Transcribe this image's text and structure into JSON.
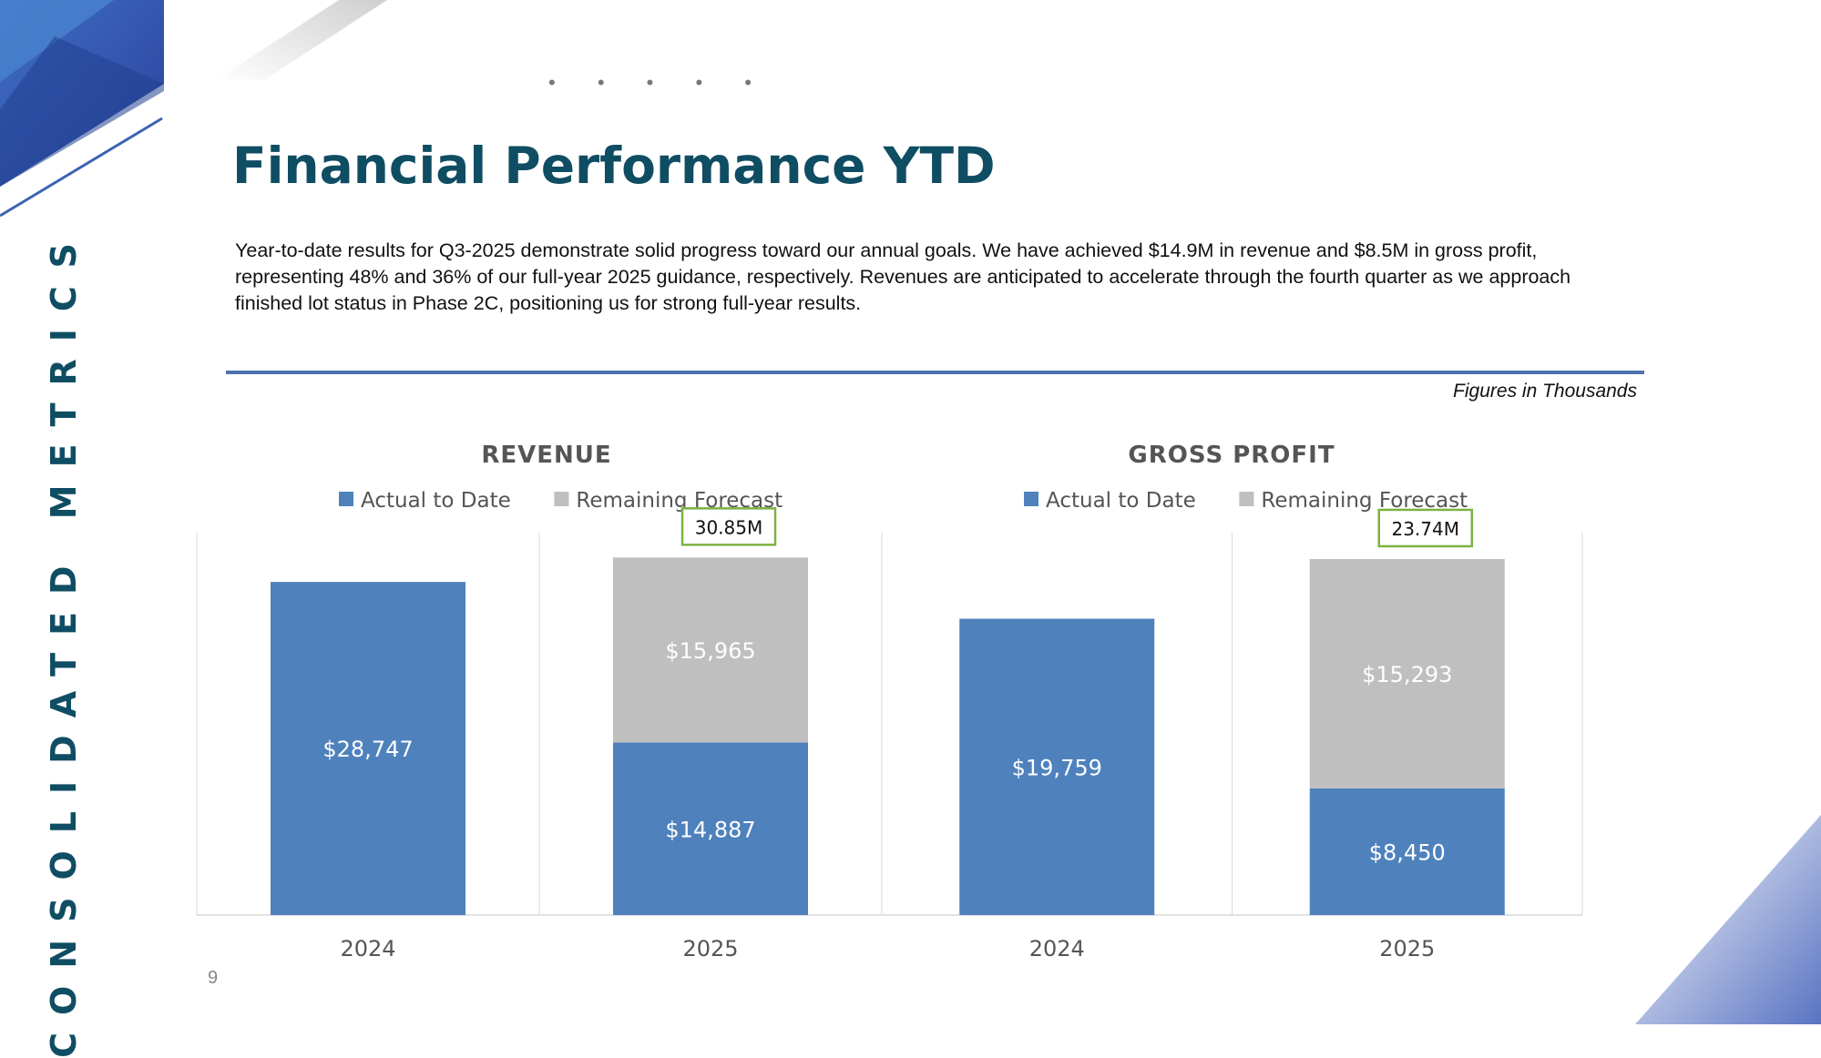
{
  "sidebar": {
    "title": "CONSOLIDATED METRICS"
  },
  "header": {
    "title": "Financial Performance YTD"
  },
  "intro": "Year-to-date results for Q3-2025 demonstrate solid progress toward our annual goals. We have achieved $14.9M in revenue and $8.5M in gross profit, representing 48% and 36% of our full-year 2025 guidance, respectively. Revenues are anticipated to accelerate through the fourth quarter as we approach finished lot status in Phase 2C, positioning us for strong full-year results.",
  "figures_note": "Figures in Thousands",
  "page_number": "9",
  "decor": {
    "dots": "• • • • •"
  },
  "colors": {
    "actual": "#4f81bd",
    "remaining": "#bfbfbf",
    "title": "#0f4d63",
    "annotation_border": "#7bb241"
  },
  "chart_data": [
    {
      "type": "bar",
      "stacked": true,
      "title": "REVENUE",
      "categories": [
        "2024",
        "2025"
      ],
      "series": [
        {
          "name": "Actual to Date",
          "values": [
            28747,
            14887
          ],
          "labels": [
            "$28,747",
            "$14,887"
          ]
        },
        {
          "name": "Remaining Forecast",
          "values": [
            0,
            15965
          ],
          "labels": [
            "",
            "$15,965"
          ]
        }
      ],
      "annotation": {
        "category": "2025",
        "text": "30.85M"
      },
      "legend": "top",
      "ylim": [
        0,
        33000
      ],
      "grid": false
    },
    {
      "type": "bar",
      "stacked": true,
      "title": "GROSS PROFIT",
      "categories": [
        "2024",
        "2025"
      ],
      "series": [
        {
          "name": "Actual to Date",
          "values": [
            19759,
            8450
          ],
          "labels": [
            "$19,759",
            "$8,450"
          ]
        },
        {
          "name": "Remaining Forecast",
          "values": [
            0,
            15293
          ],
          "labels": [
            "",
            "$15,293"
          ]
        }
      ],
      "annotation": {
        "category": "2025",
        "text": "23.74M"
      },
      "legend": "top",
      "ylim": [
        0,
        25500
      ],
      "grid": false
    }
  ]
}
